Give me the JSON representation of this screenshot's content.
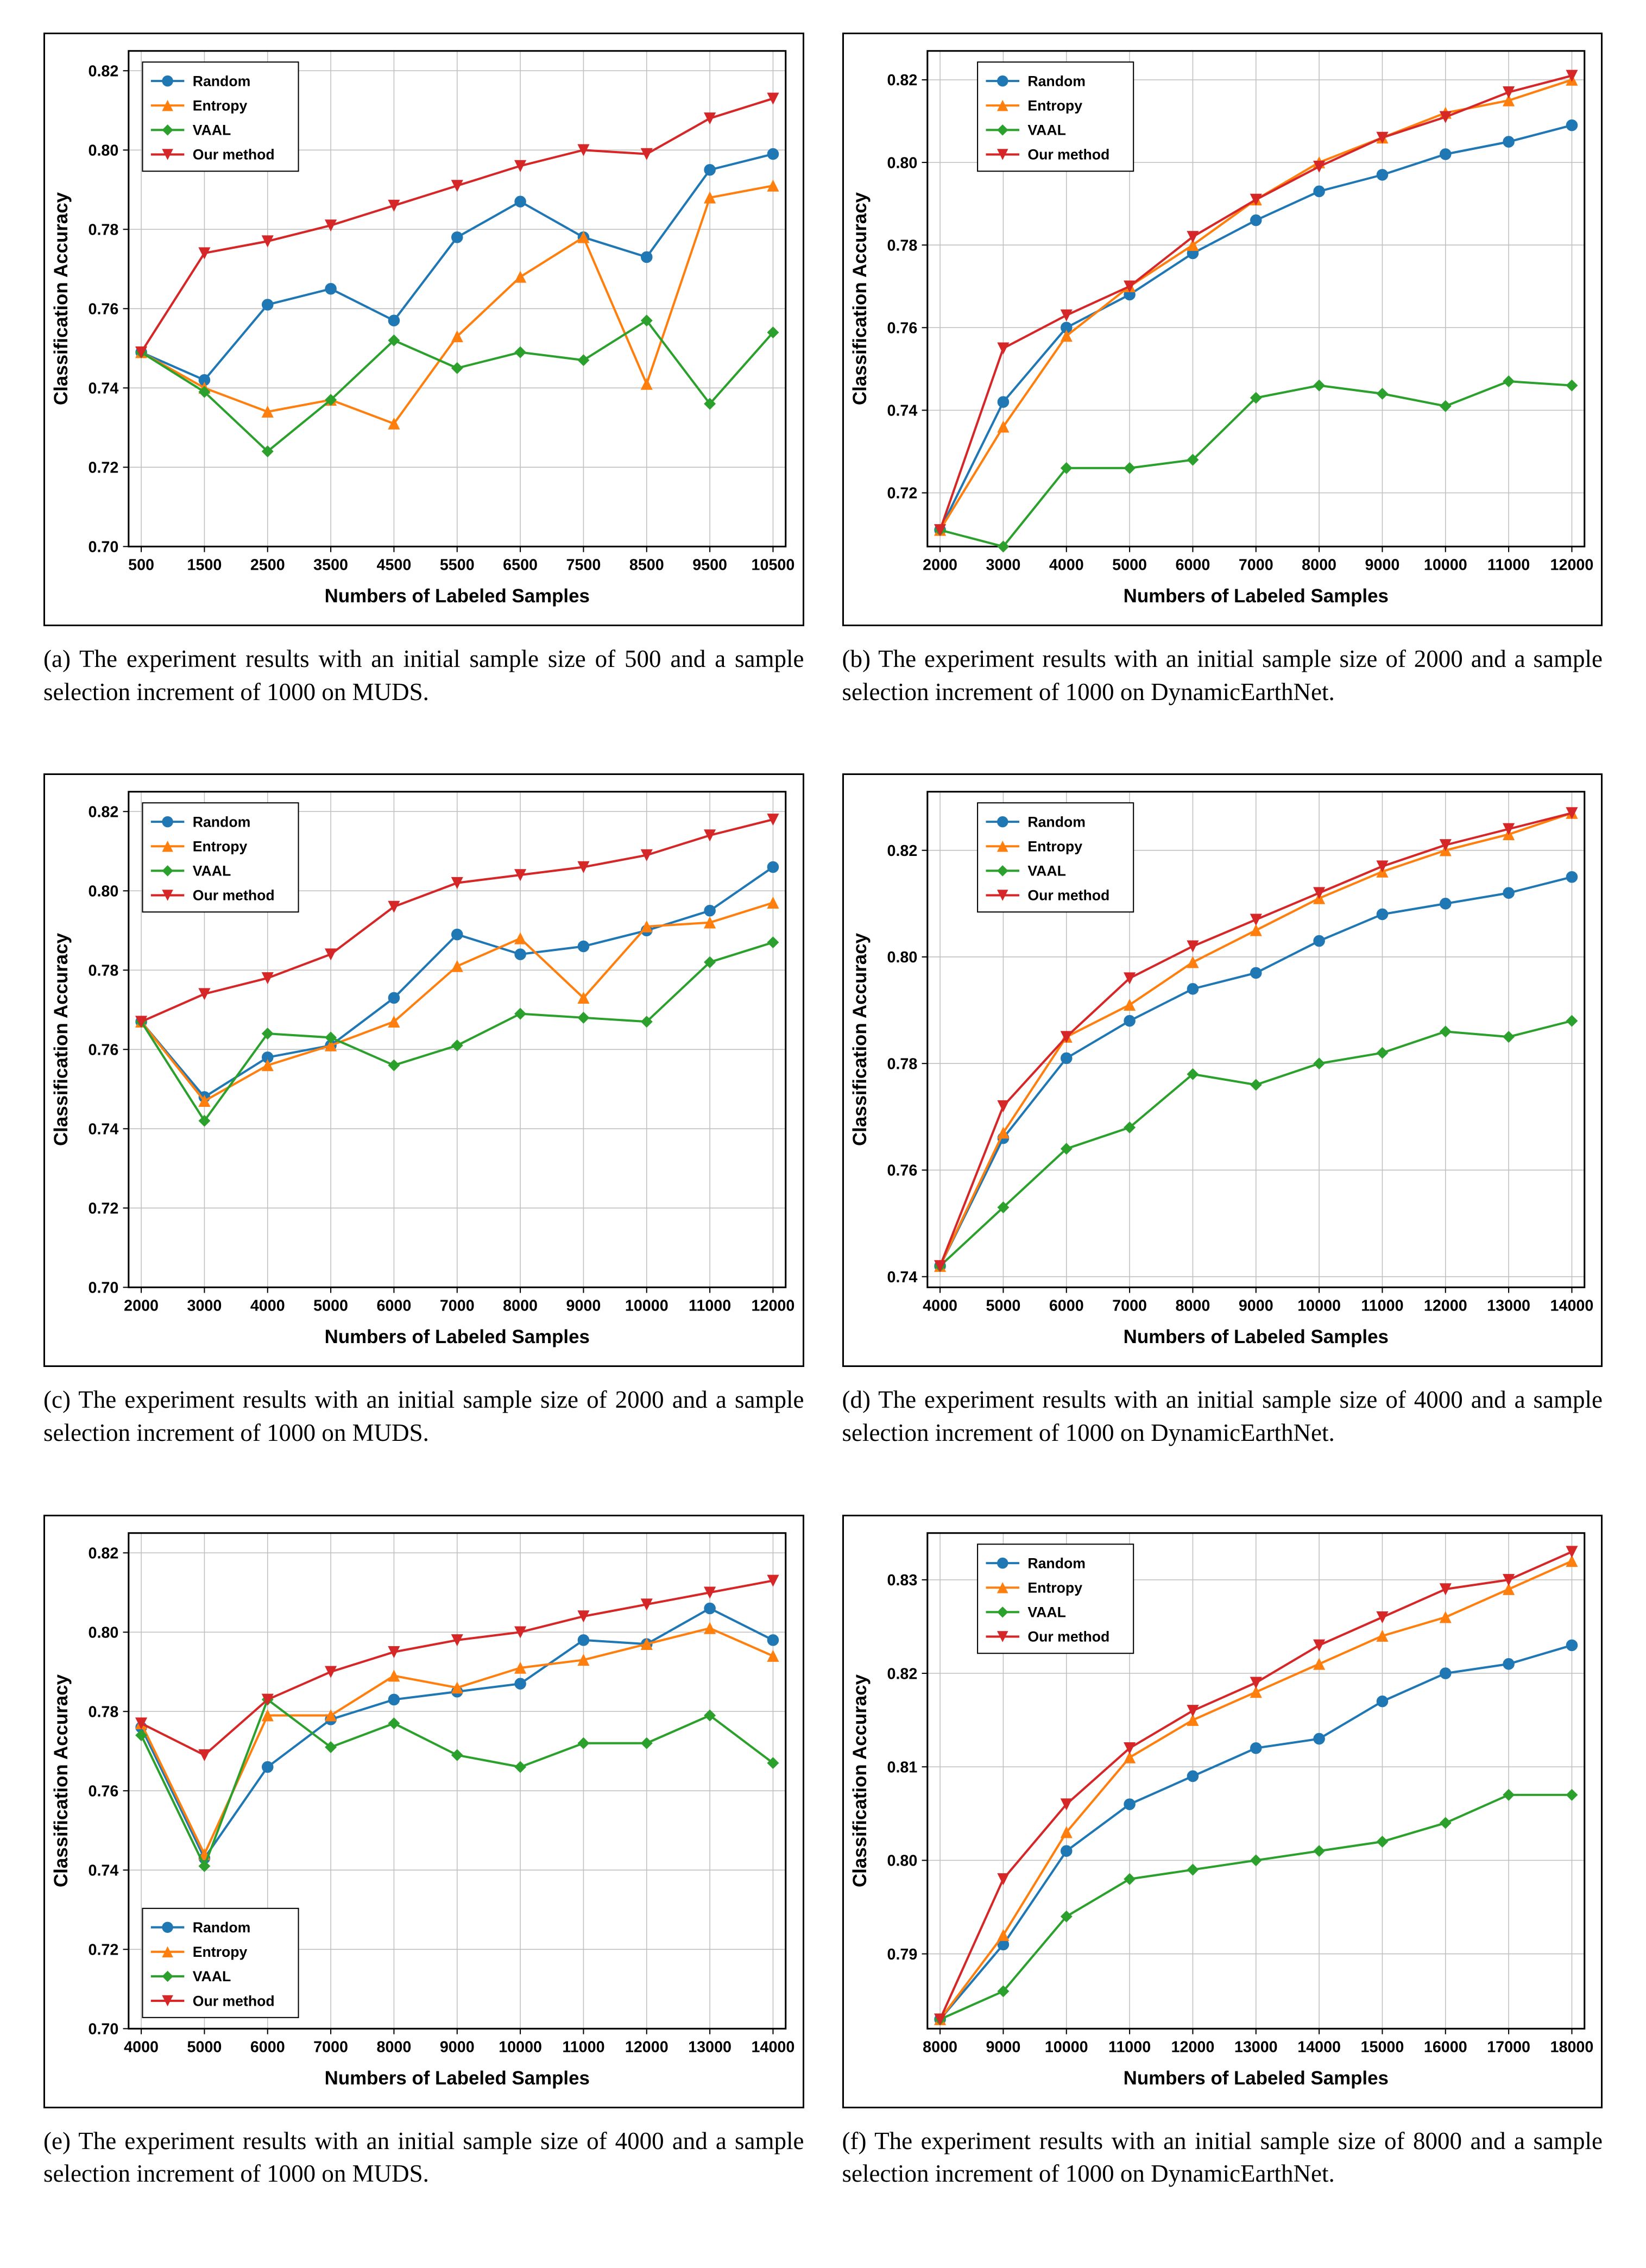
{
  "global": {
    "xlabel": "Numbers of Labeled Samples",
    "ylabel": "Classification Accuracy",
    "legend_labels": [
      "Random",
      "Entropy",
      "VAAL",
      "Our method"
    ],
    "series_colors": {
      "Random": "#1f77b4",
      "Entropy": "#ff7f0e",
      "VAAL": "#2ca02c",
      "Our method": "#d62728"
    },
    "markers": {
      "Random": "circle",
      "Entropy": "triangle",
      "VAAL": "diamond",
      "Our method": "triangle-down"
    },
    "line_width": 4,
    "marker_size": 10,
    "grid_color": "#bfbfbf",
    "background_color": "#ffffff",
    "axis_color": "#000000",
    "tick_fontsize": 28,
    "label_fontsize": 34,
    "legend_fontsize": 26,
    "legend_border": "#000000"
  },
  "panels": [
    {
      "id": "a",
      "caption": "(a) The experiment results with an initial sample size of 500 and a sample selection increment of 1000 on MUDS.",
      "xticks": [
        500,
        1500,
        2500,
        3500,
        4500,
        5500,
        6500,
        7500,
        8500,
        9500,
        10500
      ],
      "yticks": [
        0.7,
        0.72,
        0.74,
        0.76,
        0.78,
        0.8,
        0.82
      ],
      "ylim": [
        0.7,
        0.825
      ],
      "legend_pos": "top-left",
      "series": {
        "Random": [
          0.749,
          0.742,
          0.761,
          0.765,
          0.757,
          0.778,
          0.787,
          0.778,
          0.773,
          0.795,
          0.799
        ],
        "Entropy": [
          0.749,
          0.74,
          0.734,
          0.737,
          0.731,
          0.753,
          0.768,
          0.778,
          0.741,
          0.788,
          0.791
        ],
        "VAAL": [
          0.749,
          0.739,
          0.724,
          0.737,
          0.752,
          0.745,
          0.749,
          0.747,
          0.757,
          0.736,
          0.754
        ],
        "Our method": [
          0.749,
          0.774,
          0.777,
          0.781,
          0.786,
          0.791,
          0.796,
          0.8,
          0.799,
          0.808,
          0.813
        ]
      }
    },
    {
      "id": "b",
      "caption": "(b) The experiment results with an initial sample size of 2000 and a sample selection increment of 1000 on DynamicEarthNet.",
      "xticks": [
        2000,
        3000,
        4000,
        5000,
        6000,
        7000,
        8000,
        9000,
        10000,
        11000,
        12000
      ],
      "yticks": [
        0.72,
        0.74,
        0.76,
        0.78,
        0.8,
        0.82
      ],
      "ylim": [
        0.707,
        0.827
      ],
      "legend_pos": "top-left-inset",
      "series": {
        "Random": [
          0.711,
          0.742,
          0.76,
          0.768,
          0.778,
          0.786,
          0.793,
          0.797,
          0.802,
          0.805,
          0.809
        ],
        "Entropy": [
          0.711,
          0.736,
          0.758,
          0.77,
          0.78,
          0.791,
          0.8,
          0.806,
          0.812,
          0.815,
          0.82
        ],
        "VAAL": [
          0.711,
          0.707,
          0.726,
          0.726,
          0.728,
          0.743,
          0.746,
          0.744,
          0.741,
          0.747,
          0.746
        ],
        "Our method": [
          0.711,
          0.755,
          0.763,
          0.77,
          0.782,
          0.791,
          0.799,
          0.806,
          0.811,
          0.817,
          0.821
        ]
      }
    },
    {
      "id": "c",
      "caption": "(c) The experiment results with an initial sample size of 2000 and a sample selection increment of 1000 on MUDS.",
      "xticks": [
        2000,
        3000,
        4000,
        5000,
        6000,
        7000,
        8000,
        9000,
        10000,
        11000,
        12000
      ],
      "yticks": [
        0.7,
        0.72,
        0.74,
        0.76,
        0.78,
        0.8,
        0.82
      ],
      "ylim": [
        0.7,
        0.825
      ],
      "legend_pos": "top-left",
      "series": {
        "Random": [
          0.767,
          0.748,
          0.758,
          0.761,
          0.773,
          0.789,
          0.784,
          0.786,
          0.79,
          0.795,
          0.806
        ],
        "Entropy": [
          0.767,
          0.747,
          0.756,
          0.761,
          0.767,
          0.781,
          0.788,
          0.773,
          0.791,
          0.792,
          0.797
        ],
        "VAAL": [
          0.767,
          0.742,
          0.764,
          0.763,
          0.756,
          0.761,
          0.769,
          0.768,
          0.767,
          0.782,
          0.787
        ],
        "Our method": [
          0.767,
          0.774,
          0.778,
          0.784,
          0.796,
          0.802,
          0.804,
          0.806,
          0.809,
          0.814,
          0.818
        ]
      }
    },
    {
      "id": "d",
      "caption": "(d) The experiment results with an initial sample size of 4000 and a sample selection increment of 1000 on DynamicEarthNet.",
      "xticks": [
        4000,
        5000,
        6000,
        7000,
        8000,
        9000,
        10000,
        11000,
        12000,
        13000,
        14000
      ],
      "yticks": [
        0.74,
        0.76,
        0.78,
        0.8,
        0.82
      ],
      "ylim": [
        0.738,
        0.831
      ],
      "legend_pos": "top-left-inset",
      "series": {
        "Random": [
          0.742,
          0.766,
          0.781,
          0.788,
          0.794,
          0.797,
          0.803,
          0.808,
          0.81,
          0.812,
          0.815
        ],
        "Entropy": [
          0.742,
          0.767,
          0.785,
          0.791,
          0.799,
          0.805,
          0.811,
          0.816,
          0.82,
          0.823,
          0.827
        ],
        "VAAL": [
          0.742,
          0.753,
          0.764,
          0.768,
          0.778,
          0.776,
          0.78,
          0.782,
          0.786,
          0.785,
          0.788
        ],
        "Our method": [
          0.742,
          0.772,
          0.785,
          0.796,
          0.802,
          0.807,
          0.812,
          0.817,
          0.821,
          0.824,
          0.827
        ]
      }
    },
    {
      "id": "e",
      "caption": "(e) The experiment results with an initial sample size of 4000 and a sample selection increment of 1000 on MUDS.",
      "xticks": [
        4000,
        5000,
        6000,
        7000,
        8000,
        9000,
        10000,
        11000,
        12000,
        13000,
        14000
      ],
      "yticks": [
        0.7,
        0.72,
        0.74,
        0.76,
        0.78,
        0.8,
        0.82
      ],
      "ylim": [
        0.7,
        0.825
      ],
      "legend_pos": "bottom-left",
      "series": {
        "Random": [
          0.776,
          0.743,
          0.766,
          0.778,
          0.783,
          0.785,
          0.787,
          0.798,
          0.797,
          0.806,
          0.798
        ],
        "Entropy": [
          0.777,
          0.744,
          0.779,
          0.779,
          0.789,
          0.786,
          0.791,
          0.793,
          0.797,
          0.801,
          0.794
        ],
        "VAAL": [
          0.774,
          0.741,
          0.783,
          0.771,
          0.777,
          0.769,
          0.766,
          0.772,
          0.772,
          0.779,
          0.767
        ],
        "Our method": [
          0.777,
          0.769,
          0.783,
          0.79,
          0.795,
          0.798,
          0.8,
          0.804,
          0.807,
          0.81,
          0.813
        ]
      }
    },
    {
      "id": "f",
      "caption": "(f) The experiment results with an initial sample size of 8000 and a sample selection increment of 1000 on DynamicEarthNet.",
      "xticks": [
        8000,
        9000,
        10000,
        11000,
        12000,
        13000,
        14000,
        15000,
        16000,
        17000,
        18000
      ],
      "yticks": [
        0.79,
        0.8,
        0.81,
        0.82,
        0.83
      ],
      "ylim": [
        0.782,
        0.835
      ],
      "legend_pos": "top-left-inset",
      "series": {
        "Random": [
          0.783,
          0.791,
          0.801,
          0.806,
          0.809,
          0.812,
          0.813,
          0.817,
          0.82,
          0.821,
          0.823
        ],
        "Entropy": [
          0.783,
          0.792,
          0.803,
          0.811,
          0.815,
          0.818,
          0.821,
          0.824,
          0.826,
          0.829,
          0.832
        ],
        "VAAL": [
          0.783,
          0.786,
          0.794,
          0.798,
          0.799,
          0.8,
          0.801,
          0.802,
          0.804,
          0.807,
          0.807
        ],
        "Our method": [
          0.783,
          0.798,
          0.806,
          0.812,
          0.816,
          0.819,
          0.823,
          0.826,
          0.829,
          0.83,
          0.833
        ]
      }
    }
  ]
}
